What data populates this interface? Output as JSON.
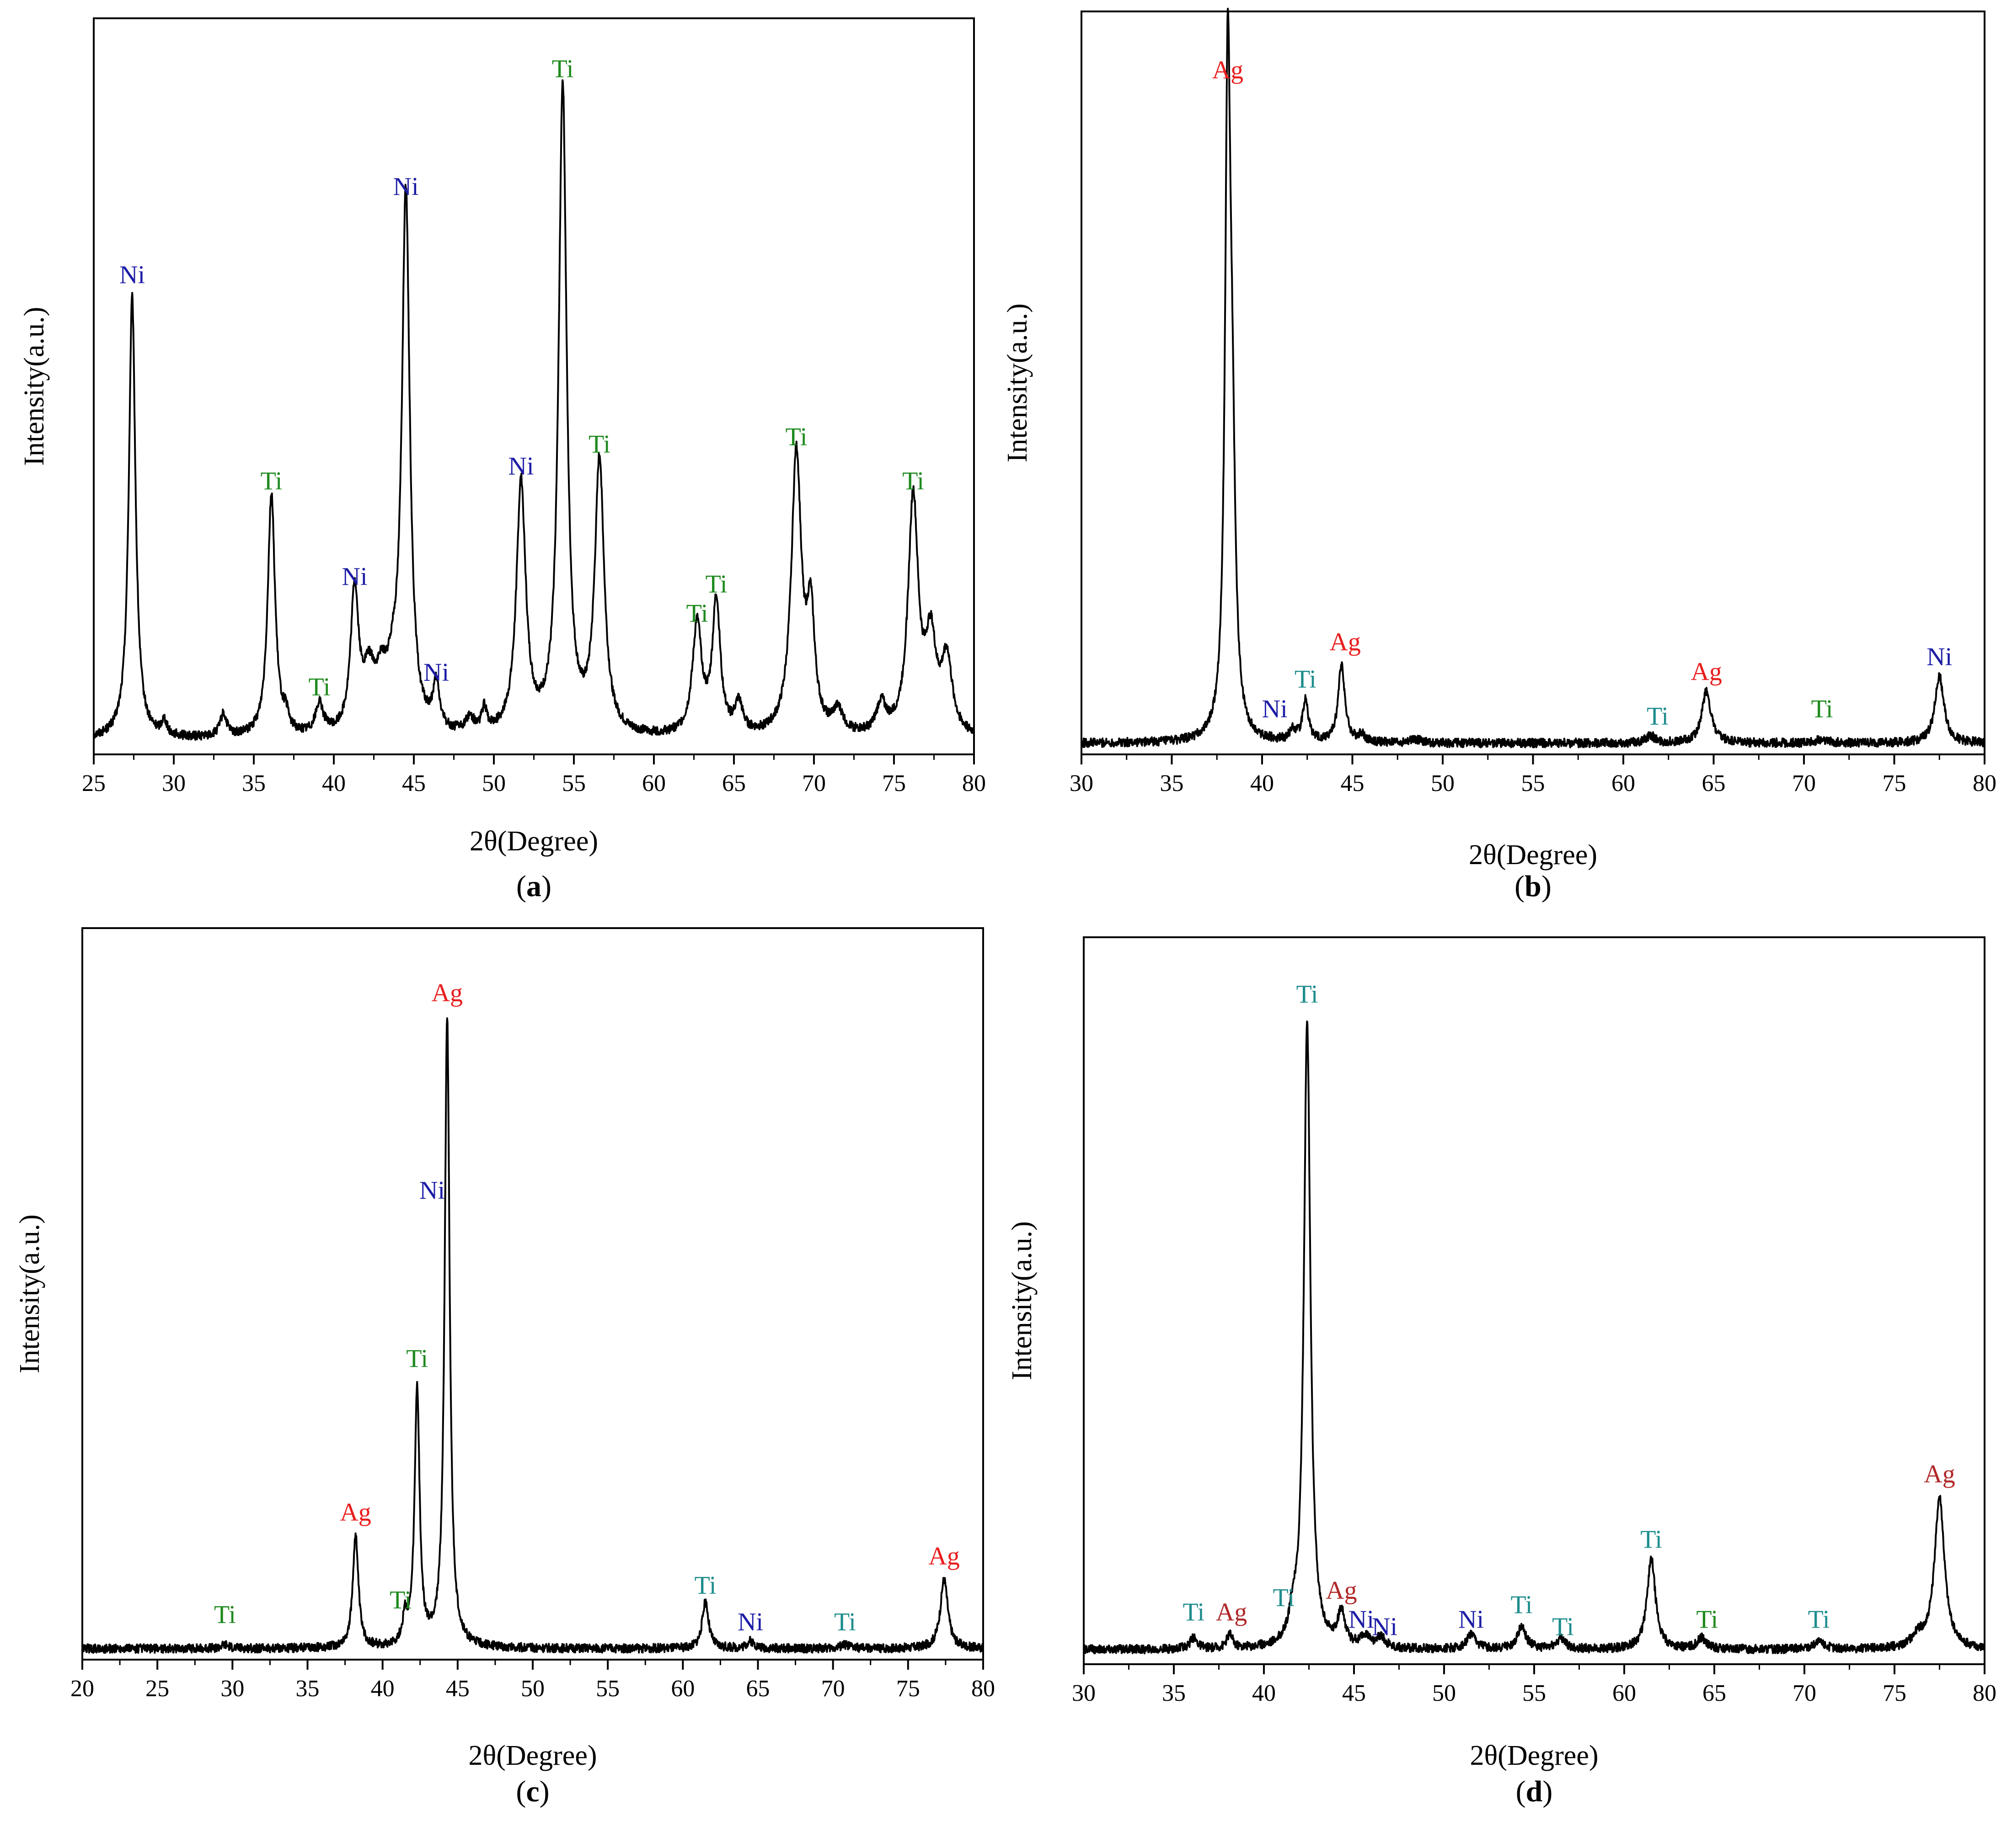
{
  "colors": {
    "Ni": "#1c1ca6",
    "Ti": "#1e8a1e",
    "Ti_teal": "#1e8c8c",
    "Ag": "#e81e1e",
    "Ag_dark": "#b02828",
    "line": "#000000"
  },
  "chart_data": [
    {
      "id": "a",
      "type": "line",
      "caption": "(a)",
      "caption_letter": "a",
      "xlabel": "2θ(Degree)",
      "ylabel": "Intensity(a.u.)",
      "xlim": [
        25,
        80
      ],
      "ylim": [
        0,
        100
      ],
      "xticks": [
        25,
        30,
        35,
        40,
        45,
        50,
        55,
        60,
        65,
        70,
        75,
        80
      ],
      "baseline": 2,
      "peaks": [
        {
          "x": 27.4,
          "h": 60,
          "w": 0.25
        },
        {
          "x": 29.4,
          "h": 2,
          "w": 0.2
        },
        {
          "x": 33.1,
          "h": 3,
          "w": 0.25
        },
        {
          "x": 36.1,
          "h": 33,
          "w": 0.28
        },
        {
          "x": 37.0,
          "h": 2,
          "w": 0.2
        },
        {
          "x": 39.1,
          "h": 4,
          "w": 0.3
        },
        {
          "x": 41.3,
          "h": 19,
          "w": 0.3
        },
        {
          "x": 42.2,
          "h": 7,
          "w": 0.45
        },
        {
          "x": 43.0,
          "h": 6,
          "w": 0.45
        },
        {
          "x": 43.7,
          "h": 5,
          "w": 0.35
        },
        {
          "x": 44.5,
          "h": 73,
          "w": 0.3
        },
        {
          "x": 46.4,
          "h": 6,
          "w": 0.25
        },
        {
          "x": 48.5,
          "h": 2,
          "w": 0.3
        },
        {
          "x": 49.4,
          "h": 3,
          "w": 0.2
        },
        {
          "x": 51.7,
          "h": 34,
          "w": 0.35
        },
        {
          "x": 54.3,
          "h": 88,
          "w": 0.3
        },
        {
          "x": 56.6,
          "h": 37,
          "w": 0.35
        },
        {
          "x": 62.7,
          "h": 15,
          "w": 0.35
        },
        {
          "x": 63.9,
          "h": 18,
          "w": 0.3
        },
        {
          "x": 65.3,
          "h": 4,
          "w": 0.3
        },
        {
          "x": 68.9,
          "h": 38,
          "w": 0.38
        },
        {
          "x": 69.8,
          "h": 15,
          "w": 0.3
        },
        {
          "x": 71.5,
          "h": 3,
          "w": 0.4
        },
        {
          "x": 74.2,
          "h": 4,
          "w": 0.35
        },
        {
          "x": 76.2,
          "h": 32,
          "w": 0.38
        },
        {
          "x": 77.3,
          "h": 12,
          "w": 0.4
        },
        {
          "x": 78.3,
          "h": 10,
          "w": 0.4
        }
      ],
      "labels": [
        {
          "text": "Ni",
          "x": 27.4,
          "y": 64,
          "color": "#1c1ca6"
        },
        {
          "text": "Ti",
          "x": 36.1,
          "y": 36,
          "color": "#1e8a1e"
        },
        {
          "text": "Ti",
          "x": 39.1,
          "y": 8,
          "color": "#1e8a1e"
        },
        {
          "text": "Ni",
          "x": 41.3,
          "y": 23,
          "color": "#1c1ca6"
        },
        {
          "text": "Ni",
          "x": 44.5,
          "y": 76,
          "color": "#1c1ca6"
        },
        {
          "text": "Ni",
          "x": 46.4,
          "y": 10,
          "color": "#1c1ca6"
        },
        {
          "text": "Ni",
          "x": 51.7,
          "y": 38,
          "color": "#1c1ca6"
        },
        {
          "text": "Ti",
          "x": 54.3,
          "y": 92,
          "color": "#1e8a1e"
        },
        {
          "text": "Ti",
          "x": 56.6,
          "y": 41,
          "color": "#1e8a1e"
        },
        {
          "text": "Ti",
          "x": 62.7,
          "y": 18,
          "color": "#1e8a1e"
        },
        {
          "text": "Ti",
          "x": 63.9,
          "y": 22,
          "color": "#1e8a1e"
        },
        {
          "text": "Ti",
          "x": 68.9,
          "y": 42,
          "color": "#1e8a1e"
        },
        {
          "text": "Ti",
          "x": 76.2,
          "y": 36,
          "color": "#1e8a1e"
        }
      ]
    },
    {
      "id": "b",
      "type": "line",
      "caption": "(b)",
      "caption_letter": "b",
      "xlabel": "2θ(Degree)",
      "ylabel": "Intensity(a.u.)",
      "xlim": [
        30,
        80
      ],
      "ylim": [
        0,
        100
      ],
      "xticks": [
        30,
        35,
        40,
        45,
        50,
        55,
        60,
        65,
        70,
        75,
        80
      ],
      "baseline": 1.5,
      "peaks": [
        {
          "x": 38.1,
          "h": 87,
          "w": 0.18
        },
        {
          "x": 38.35,
          "h": 30,
          "w": 0.2
        },
        {
          "x": 41.7,
          "h": 1.5,
          "w": 0.2
        },
        {
          "x": 42.4,
          "h": 5.5,
          "w": 0.2
        },
        {
          "x": 44.4,
          "h": 10.5,
          "w": 0.22
        },
        {
          "x": 45.5,
          "h": 1,
          "w": 0.2
        },
        {
          "x": 48.5,
          "h": 0.5,
          "w": 0.3
        },
        {
          "x": 61.5,
          "h": 1,
          "w": 0.3
        },
        {
          "x": 64.6,
          "h": 7,
          "w": 0.3
        },
        {
          "x": 71,
          "h": 0.5,
          "w": 0.4
        },
        {
          "x": 77.5,
          "h": 9,
          "w": 0.3
        }
      ],
      "labels": [
        {
          "text": "Ag",
          "x": 38.1,
          "y": 91,
          "color": "#e81e1e"
        },
        {
          "text": "Ni",
          "x": 40.7,
          "y": 5,
          "color": "#1c1ca6"
        },
        {
          "text": "Ti",
          "x": 42.4,
          "y": 9,
          "color": "#1e8c8c"
        },
        {
          "text": "Ag",
          "x": 44.6,
          "y": 14,
          "color": "#e81e1e"
        },
        {
          "text": "Ti",
          "x": 61.9,
          "y": 4,
          "color": "#1e8c8c"
        },
        {
          "text": "Ag",
          "x": 64.6,
          "y": 10,
          "color": "#e81e1e"
        },
        {
          "text": "Ti",
          "x": 71,
          "y": 5,
          "color": "#1e8a1e"
        },
        {
          "text": "Ni",
          "x": 77.5,
          "y": 12,
          "color": "#1c1ca6"
        }
      ]
    },
    {
      "id": "c",
      "type": "line",
      "caption": "(c)",
      "caption_letter": "c",
      "xlabel": "2θ(Degree)",
      "ylabel": "Intensity(a.u.)",
      "xlim": [
        20,
        80
      ],
      "ylim": [
        0,
        100
      ],
      "xticks": [
        20,
        25,
        30,
        35,
        40,
        45,
        50,
        55,
        60,
        65,
        70,
        75,
        80
      ],
      "baseline": 1.5,
      "peaks": [
        {
          "x": 29.5,
          "h": 0.5,
          "w": 0.3
        },
        {
          "x": 38.2,
          "h": 15.5,
          "w": 0.22
        },
        {
          "x": 41.5,
          "h": 3.5,
          "w": 0.2
        },
        {
          "x": 42.3,
          "h": 35,
          "w": 0.2
        },
        {
          "x": 44.3,
          "h": 86,
          "w": 0.2
        },
        {
          "x": 61.5,
          "h": 6.5,
          "w": 0.25
        },
        {
          "x": 64.5,
          "h": 1,
          "w": 0.3
        },
        {
          "x": 70.8,
          "h": 0.5,
          "w": 0.4
        },
        {
          "x": 77.4,
          "h": 9.5,
          "w": 0.3
        }
      ],
      "labels": [
        {
          "text": "Ti",
          "x": 29.5,
          "y": 5,
          "color": "#1e8a1e"
        },
        {
          "text": "Ag",
          "x": 38.2,
          "y": 19,
          "color": "#e81e1e"
        },
        {
          "text": "Ti",
          "x": 41.2,
          "y": 7,
          "color": "#1e8a1e"
        },
        {
          "text": "Ti",
          "x": 42.3,
          "y": 40,
          "color": "#1e8a1e"
        },
        {
          "text": "Ni",
          "x": 43.3,
          "y": 63,
          "color": "#1c1ca6"
        },
        {
          "text": "Ag",
          "x": 44.3,
          "y": 90,
          "color": "#e81e1e"
        },
        {
          "text": "Ti",
          "x": 61.5,
          "y": 9,
          "color": "#1e8c8c"
        },
        {
          "text": "Ni",
          "x": 64.5,
          "y": 4,
          "color": "#1c1ca6"
        },
        {
          "text": "Ti",
          "x": 70.8,
          "y": 4,
          "color": "#1e8c8c"
        },
        {
          "text": "Ag",
          "x": 77.4,
          "y": 13,
          "color": "#e81e1e"
        }
      ]
    },
    {
      "id": "d",
      "type": "line",
      "caption": "(d)",
      "caption_letter": "d",
      "xlabel": "2θ(Degree)",
      "ylabel": "Intensity(a.u.)",
      "xlim": [
        30,
        80
      ],
      "ylim": [
        0,
        100
      ],
      "xticks": [
        30,
        35,
        40,
        45,
        50,
        55,
        60,
        65,
        70,
        75,
        80
      ],
      "baseline": 2,
      "peaks": [
        {
          "x": 36.1,
          "h": 1.5,
          "w": 0.25
        },
        {
          "x": 38.1,
          "h": 2,
          "w": 0.2
        },
        {
          "x": 41.6,
          "h": 3,
          "w": 0.2
        },
        {
          "x": 42.4,
          "h": 86,
          "w": 0.22
        },
        {
          "x": 44.3,
          "h": 4.5,
          "w": 0.25
        },
        {
          "x": 45.6,
          "h": 1.5,
          "w": 0.3
        },
        {
          "x": 46.5,
          "h": 1.5,
          "w": 0.3
        },
        {
          "x": 51.5,
          "h": 2,
          "w": 0.3
        },
        {
          "x": 54.3,
          "h": 3,
          "w": 0.3
        },
        {
          "x": 56.5,
          "h": 1.5,
          "w": 0.3
        },
        {
          "x": 61.5,
          "h": 12.5,
          "w": 0.28
        },
        {
          "x": 64.3,
          "h": 1.5,
          "w": 0.3
        },
        {
          "x": 70.8,
          "h": 1,
          "w": 0.4
        },
        {
          "x": 76.3,
          "h": 1.5,
          "w": 0.4
        },
        {
          "x": 77.5,
          "h": 21,
          "w": 0.33
        }
      ],
      "labels": [
        {
          "text": "Ti",
          "x": 36.1,
          "y": 6,
          "color": "#1e8c8c"
        },
        {
          "text": "Ag",
          "x": 38.2,
          "y": 6,
          "color": "#b02828"
        },
        {
          "text": "Ti",
          "x": 41.1,
          "y": 8,
          "color": "#1e8c8c"
        },
        {
          "text": "Ti",
          "x": 42.4,
          "y": 91,
          "color": "#1e8c8c"
        },
        {
          "text": "Ag",
          "x": 44.3,
          "y": 9,
          "color": "#b02828"
        },
        {
          "text": "Ni",
          "x": 45.4,
          "y": 5,
          "color": "#1c1ca6"
        },
        {
          "text": "Ni",
          "x": 46.7,
          "y": 4,
          "color": "#1c1ca6"
        },
        {
          "text": "Ni",
          "x": 51.5,
          "y": 5,
          "color": "#1c1ca6"
        },
        {
          "text": "Ti",
          "x": 54.3,
          "y": 7,
          "color": "#1e8c8c"
        },
        {
          "text": "Ti",
          "x": 56.6,
          "y": 4,
          "color": "#1e8c8c"
        },
        {
          "text": "Ti",
          "x": 61.5,
          "y": 16,
          "color": "#1e8c8c"
        },
        {
          "text": "Ti",
          "x": 64.6,
          "y": 5,
          "color": "#1e8a1e"
        },
        {
          "text": "Ti",
          "x": 70.8,
          "y": 5,
          "color": "#1e8c8c"
        },
        {
          "text": "Ag",
          "x": 77.5,
          "y": 25,
          "color": "#b02828"
        }
      ]
    }
  ]
}
